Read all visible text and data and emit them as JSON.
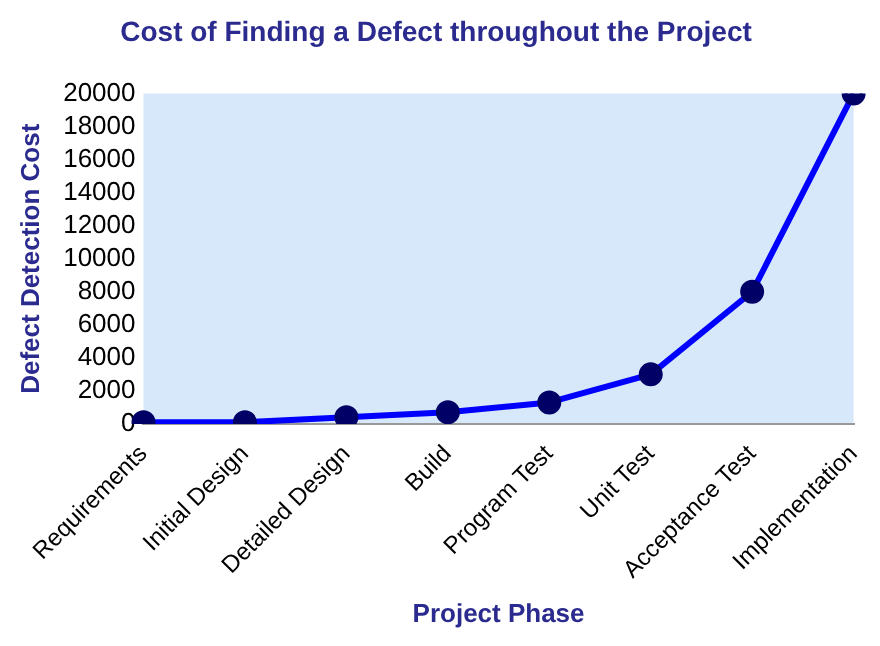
{
  "chart_data": {
    "type": "line",
    "title": "Cost of Finding a Defect throughout the Project",
    "xlabel": "Project Phase",
    "ylabel": "Defect Detection Cost",
    "categories": [
      "Requirements",
      "Initial Design",
      "Detailed Design",
      "Build",
      "Program Test",
      "Unit Test",
      "Acceptance Test",
      "Implementation"
    ],
    "series": [
      {
        "color": "#0000ff",
        "values": [
          100,
          100,
          400,
          700,
          1300,
          3000,
          8000,
          20000
        ]
      }
    ],
    "ylim": [
      0,
      20000
    ],
    "yticks": [
      0,
      2000,
      4000,
      6000,
      8000,
      10000,
      12000,
      14000,
      16000,
      18000,
      20000
    ],
    "grid": false,
    "legend": false,
    "marker": "circle",
    "line_style": "solid"
  }
}
